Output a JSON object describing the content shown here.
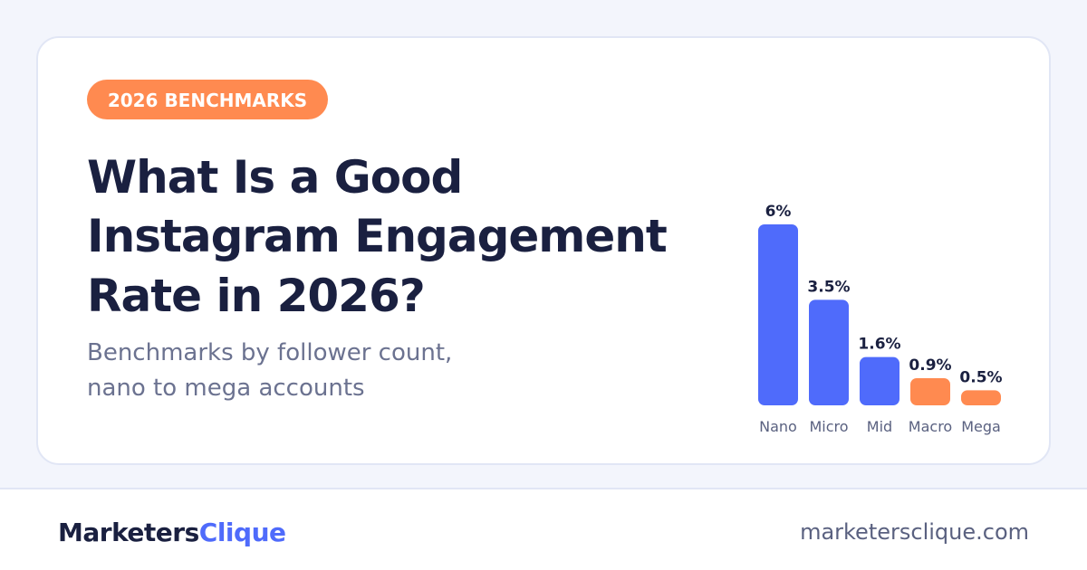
{
  "badge": "2026 BENCHMARKS",
  "header": {
    "title": [
      "What Is a Good",
      "Instagram Engagement",
      "Rate in 2026?"
    ],
    "subtitle": [
      "Benchmarks by follower count,",
      "nano to mega accounts"
    ]
  },
  "chart_data": {
    "type": "bar",
    "categories": [
      "Nano",
      "Micro",
      "Mid",
      "Macro",
      "Mega"
    ],
    "values": [
      6,
      3.5,
      1.6,
      0.9,
      0.5
    ],
    "value_labels": [
      "6%",
      "3.5%",
      "1.6%",
      "0.9%",
      "0.5%"
    ],
    "colors": [
      "#4f6bfb",
      "#4f6bfb",
      "#4f6bfb",
      "#ff8a50",
      "#ff8a50"
    ]
  },
  "footer": {
    "brand": [
      "Marketers",
      "Clique"
    ],
    "url": "marketersclique.com"
  }
}
